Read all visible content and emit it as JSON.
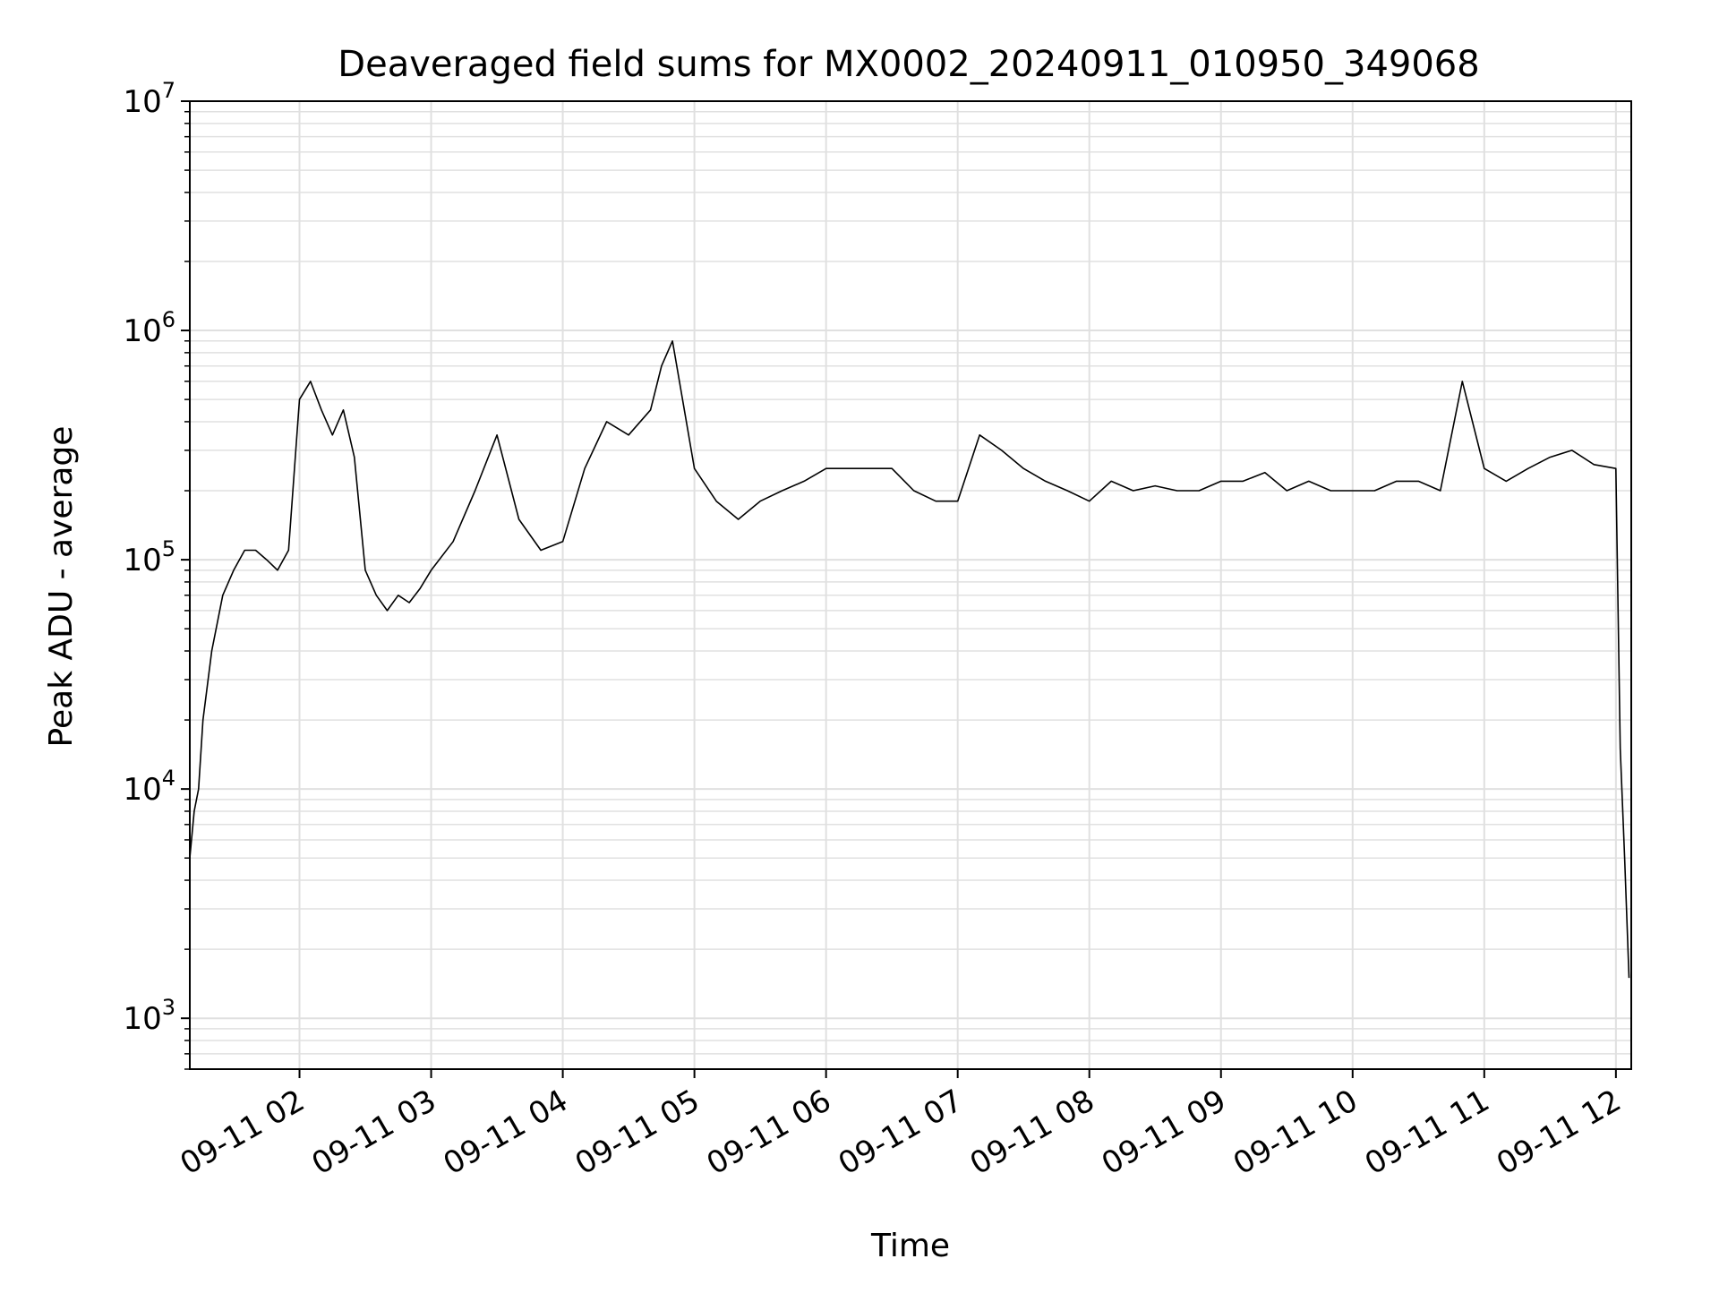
{
  "chart_data": {
    "type": "line",
    "title": "Deaveraged field sums for MX0002_20240911_010950_349068",
    "xlabel": "Time",
    "ylabel": "Peak ADU - average",
    "x_tick_labels": [
      "09-11 02",
      "09-11 03",
      "09-11 04",
      "09-11 05",
      "09-11 06",
      "09-11 07",
      "09-11 08",
      "09-11 09",
      "09-11 10",
      "09-11 11",
      "09-11 12"
    ],
    "x_tick_times": [
      "2024-09-11 02:00",
      "2024-09-11 03:00",
      "2024-09-11 04:00",
      "2024-09-11 05:00",
      "2024-09-11 06:00",
      "2024-09-11 07:00",
      "2024-09-11 08:00",
      "2024-09-11 09:00",
      "2024-09-11 10:00",
      "2024-09-11 11:00",
      "2024-09-11 12:00"
    ],
    "xlim": [
      "2024-09-11 01:10",
      "2024-09-11 12:07"
    ],
    "y_scale": "log",
    "ylim": [
      600,
      10000000
    ],
    "y_tick_values": [
      1000,
      10000,
      100000,
      1000000,
      10000000
    ],
    "y_tick_labels": [
      {
        "base": "10",
        "exp": "3"
      },
      {
        "base": "10",
        "exp": "4"
      },
      {
        "base": "10",
        "exp": "5"
      },
      {
        "base": "10",
        "exp": "6"
      },
      {
        "base": "10",
        "exp": "7"
      }
    ],
    "grid": true,
    "series_color": "#000000",
    "grid_color": "#e0e0e0",
    "series": [
      {
        "x": [
          "2024-09-11 01:10",
          "2024-09-11 01:12",
          "2024-09-11 01:14",
          "2024-09-11 01:16",
          "2024-09-11 01:20",
          "2024-09-11 01:25",
          "2024-09-11 01:30",
          "2024-09-11 01:35",
          "2024-09-11 01:40",
          "2024-09-11 01:45",
          "2024-09-11 01:50",
          "2024-09-11 01:55",
          "2024-09-11 02:00",
          "2024-09-11 02:05",
          "2024-09-11 02:10",
          "2024-09-11 02:15",
          "2024-09-11 02:20",
          "2024-09-11 02:25",
          "2024-09-11 02:30",
          "2024-09-11 02:35",
          "2024-09-11 02:40",
          "2024-09-11 02:45",
          "2024-09-11 02:50",
          "2024-09-11 02:55",
          "2024-09-11 03:00",
          "2024-09-11 03:10",
          "2024-09-11 03:20",
          "2024-09-11 03:30",
          "2024-09-11 03:40",
          "2024-09-11 03:50",
          "2024-09-11 04:00",
          "2024-09-11 04:10",
          "2024-09-11 04:20",
          "2024-09-11 04:30",
          "2024-09-11 04:40",
          "2024-09-11 04:45",
          "2024-09-11 04:50",
          "2024-09-11 05:00",
          "2024-09-11 05:10",
          "2024-09-11 05:20",
          "2024-09-11 05:30",
          "2024-09-11 05:40",
          "2024-09-11 05:50",
          "2024-09-11 06:00",
          "2024-09-11 06:10",
          "2024-09-11 06:20",
          "2024-09-11 06:30",
          "2024-09-11 06:40",
          "2024-09-11 06:50",
          "2024-09-11 07:00",
          "2024-09-11 07:10",
          "2024-09-11 07:20",
          "2024-09-11 07:30",
          "2024-09-11 07:40",
          "2024-09-11 07:50",
          "2024-09-11 08:00",
          "2024-09-11 08:10",
          "2024-09-11 08:20",
          "2024-09-11 08:30",
          "2024-09-11 08:40",
          "2024-09-11 08:50",
          "2024-09-11 09:00",
          "2024-09-11 09:10",
          "2024-09-11 09:20",
          "2024-09-11 09:30",
          "2024-09-11 09:40",
          "2024-09-11 09:50",
          "2024-09-11 10:00",
          "2024-09-11 10:10",
          "2024-09-11 10:20",
          "2024-09-11 10:30",
          "2024-09-11 10:40",
          "2024-09-11 10:50",
          "2024-09-11 11:00",
          "2024-09-11 11:10",
          "2024-09-11 11:20",
          "2024-09-11 11:30",
          "2024-09-11 11:40",
          "2024-09-11 11:50",
          "2024-09-11 12:00",
          "2024-09-11 12:02",
          "2024-09-11 12:04",
          "2024-09-11 12:06"
        ],
        "y": [
          5000,
          8000,
          10000,
          20000,
          40000,
          70000,
          90000,
          110000,
          110000,
          100000,
          90000,
          110000,
          500000,
          600000,
          450000,
          350000,
          450000,
          280000,
          90000,
          70000,
          60000,
          70000,
          65000,
          75000,
          90000,
          120000,
          200000,
          350000,
          150000,
          110000,
          120000,
          250000,
          400000,
          350000,
          450000,
          700000,
          900000,
          250000,
          180000,
          150000,
          180000,
          200000,
          220000,
          250000,
          250000,
          250000,
          250000,
          200000,
          180000,
          180000,
          350000,
          300000,
          250000,
          220000,
          200000,
          180000,
          220000,
          200000,
          210000,
          200000,
          200000,
          220000,
          220000,
          240000,
          200000,
          220000,
          200000,
          200000,
          200000,
          220000,
          220000,
          200000,
          600000,
          250000,
          220000,
          250000,
          280000,
          300000,
          260000,
          250000,
          15000,
          5000,
          1500
        ]
      }
    ]
  }
}
